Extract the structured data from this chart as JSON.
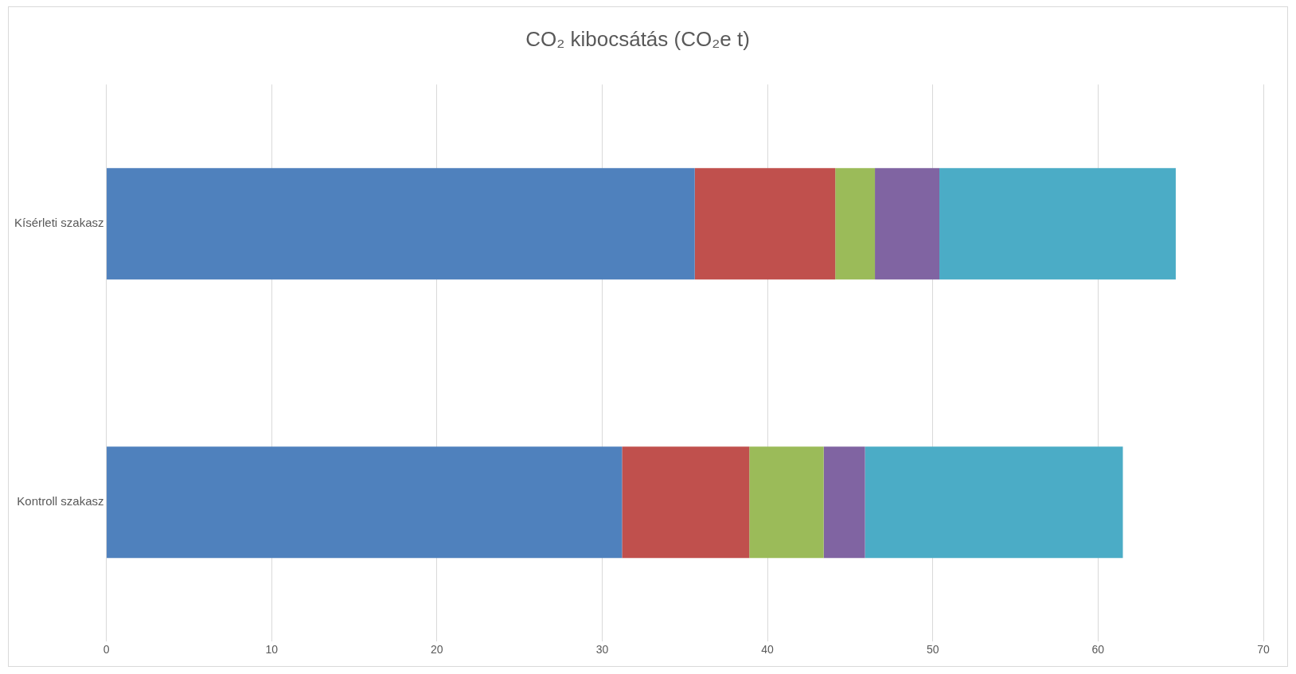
{
  "chart_data": {
    "type": "bar",
    "orientation": "horizontal",
    "stacked": true,
    "title": "CO₂ kibocsátás (CO₂e t)",
    "categories": [
      "Kísérleti szakasz",
      "Kontroll szakasz"
    ],
    "series": [
      {
        "color": "#4f81bd",
        "values": [
          35.6,
          31.2
        ]
      },
      {
        "color": "#c0504d",
        "values": [
          8.5,
          7.7
        ]
      },
      {
        "color": "#9bbb59",
        "values": [
          2.4,
          4.5
        ]
      },
      {
        "color": "#8064a2",
        "values": [
          3.9,
          2.5
        ]
      },
      {
        "color": "#4bacc6",
        "values": [
          14.3,
          15.6
        ]
      }
    ],
    "xlim": [
      0,
      70
    ],
    "xticks": [
      0,
      10,
      20,
      30,
      40,
      50,
      60,
      70
    ],
    "grid": "x",
    "legend": false
  }
}
